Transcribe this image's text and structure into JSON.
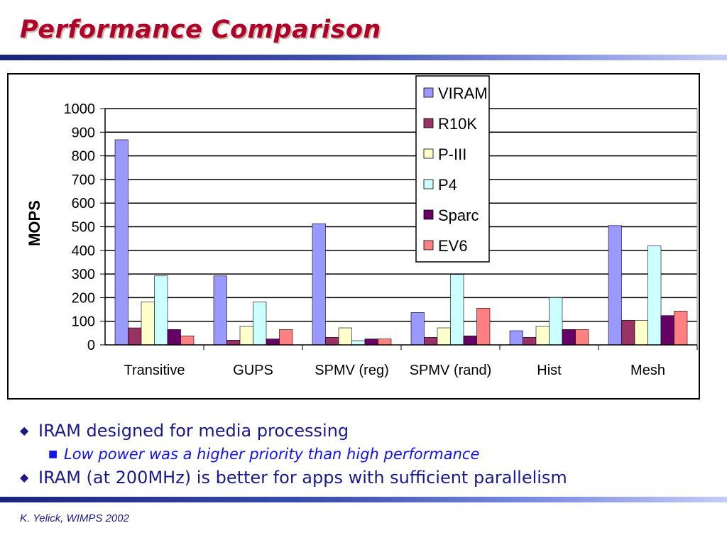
{
  "slide": {
    "title": "Performance Comparison",
    "footer": "K. Yelick, WIMPS 2002",
    "bullets": {
      "b1": "IRAM designed for media processing",
      "b1_sub": "Low power was a higher priority than high performance",
      "b2": "IRAM (at 200MHz) is better for apps with sufficient parallelism"
    }
  },
  "chart_data": {
    "type": "bar",
    "title": "",
    "xlabel": "",
    "ylabel": "MOPS",
    "ylim": [
      0,
      1000
    ],
    "yticks": [
      0,
      100,
      200,
      300,
      400,
      500,
      600,
      700,
      800,
      900,
      1000
    ],
    "grid": true,
    "legend_position": "top-right",
    "categories": [
      "Transitive",
      "GUPS",
      "SPMV (reg)",
      "SPMV (rand)",
      "Hist",
      "Mesh"
    ],
    "series": [
      {
        "name": "VIRAM",
        "color": "#9999ff",
        "values": [
          868,
          292,
          513,
          137,
          60,
          505
        ]
      },
      {
        "name": "R10K",
        "color": "#993366",
        "values": [
          72,
          20,
          32,
          32,
          32,
          104
        ]
      },
      {
        "name": "P-III",
        "color": "#ffffcc",
        "values": [
          182,
          78,
          72,
          72,
          78,
          104
        ]
      },
      {
        "name": "P4",
        "color": "#ccffff",
        "values": [
          292,
          182,
          18,
          298,
          200,
          420
        ]
      },
      {
        "name": "Sparc",
        "color": "#660066",
        "values": [
          65,
          25,
          25,
          38,
          65,
          124
        ]
      },
      {
        "name": "EV6",
        "color": "#ff8080",
        "values": [
          38,
          65,
          25,
          155,
          65,
          143
        ]
      }
    ]
  }
}
